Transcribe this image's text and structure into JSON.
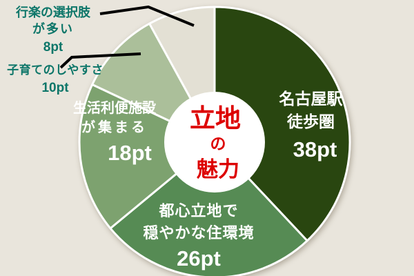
{
  "background_color": "#e9e5dc",
  "center_label": {
    "lines": [
      "立地",
      "の",
      "魅力"
    ],
    "color": "#dd0000"
  },
  "outside_label_color": "#0d7669",
  "callout_color": "#000000",
  "segments": [
    {
      "id": "nagoya-station",
      "name_lines": [
        "名古屋駅",
        "徒歩圏"
      ],
      "value": 38,
      "value_label": "38pt",
      "color": "#294610",
      "label_placement": "inside"
    },
    {
      "id": "calm-urban",
      "name_lines": [
        "都心立地で",
        "穏やかな住環境"
      ],
      "value": 26,
      "value_label": "26pt",
      "color": "#568b54",
      "label_placement": "inside"
    },
    {
      "id": "convenience",
      "name_lines": [
        "生活利便施設",
        "が集まる"
      ],
      "value": 18,
      "value_label": "18pt",
      "color": "#7da26f",
      "label_placement": "inside"
    },
    {
      "id": "child-raising",
      "name_lines": [
        "子育てのしやすさ"
      ],
      "value": 10,
      "value_label": "10pt",
      "color": "#abbf9a",
      "label_placement": "outside"
    },
    {
      "id": "leisure",
      "name_lines": [
        "行楽の選択肢",
        "が多い"
      ],
      "value": 8,
      "value_label": "8pt",
      "color": "#e3e0d4",
      "label_placement": "outside"
    }
  ],
  "chart_data": {
    "type": "pie",
    "title": "立地の魅力",
    "unit": "pt",
    "categories": [
      "名古屋駅徒歩圏",
      "都心立地で穏やかな住環境",
      "生活利便施設が集まる",
      "子育てのしやすさ",
      "行楽の選択肢が多い"
    ],
    "values": [
      38,
      26,
      18,
      10,
      8
    ],
    "colors": [
      "#294610",
      "#568b54",
      "#7da26f",
      "#abbf9a",
      "#e3e0d4"
    ],
    "donut": true,
    "start_angle_deg": 0,
    "direction": "clockwise",
    "legend": "none",
    "annotations": [
      "子育てのしやすさ 10pt と 行楽の選択肢が多い 8pt は黒の引出線で外側ラベル"
    ]
  }
}
